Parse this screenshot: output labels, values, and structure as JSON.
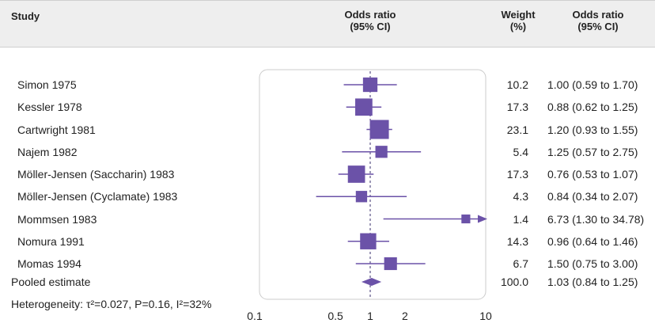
{
  "header": {
    "study": "Study",
    "or_line1": "Odds ratio",
    "or_line2": "(95% CI)",
    "weight_line1": "Weight",
    "weight_line2": "(%)",
    "orci_line1": "Odds ratio",
    "orci_line2": "(95% CI)"
  },
  "colors": {
    "marker": "#6b52a8",
    "header_bg": "#eeeeee",
    "box_border": "#cccccc",
    "text": "#222222"
  },
  "chart_data": {
    "type": "forest",
    "xscale": "log",
    "xlim": [
      0.1,
      10
    ],
    "xticks": [
      0.1,
      0.5,
      1,
      2,
      10
    ],
    "xtick_labels": [
      "0.1",
      "0.5",
      "1",
      "2",
      "10"
    ],
    "reference_line": 1,
    "studies": [
      {
        "name": "Simon 1975",
        "or": 1.0,
        "lo": 0.59,
        "hi": 1.7,
        "weight": "10.2",
        "ci_text": "1.00 (0.59 to 1.70)"
      },
      {
        "name": "Kessler 1978",
        "or": 0.88,
        "lo": 0.62,
        "hi": 1.25,
        "weight": "17.3",
        "ci_text": "0.88 (0.62 to 1.25)"
      },
      {
        "name": "Cartwright 1981",
        "or": 1.2,
        "lo": 0.93,
        "hi": 1.55,
        "weight": "23.1",
        "ci_text": "1.20 (0.93 to 1.55)"
      },
      {
        "name": "Najem 1982",
        "or": 1.25,
        "lo": 0.57,
        "hi": 2.75,
        "weight": "5.4",
        "ci_text": "1.25 (0.57 to 2.75)"
      },
      {
        "name": "Möller-Jensen (Saccharin) 1983",
        "or": 0.76,
        "lo": 0.53,
        "hi": 1.07,
        "weight": "17.3",
        "ci_text": "0.76 (0.53 to 1.07)"
      },
      {
        "name": "Möller-Jensen (Cyclamate) 1983",
        "or": 0.84,
        "lo": 0.34,
        "hi": 2.07,
        "weight": "4.3",
        "ci_text": "0.84 (0.34 to 2.07)"
      },
      {
        "name": "Mommsen 1983",
        "or": 6.73,
        "lo": 1.3,
        "hi": 34.78,
        "weight": "1.4",
        "ci_text": "6.73 (1.30 to 34.78)"
      },
      {
        "name": "Nomura 1991",
        "or": 0.96,
        "lo": 0.64,
        "hi": 1.46,
        "weight": "14.3",
        "ci_text": "0.96 (0.64 to 1.46)"
      },
      {
        "name": "Momas 1994",
        "or": 1.5,
        "lo": 0.75,
        "hi": 3.0,
        "weight": "6.7",
        "ci_text": "1.50 (0.75 to 3.00)"
      }
    ],
    "pooled": {
      "name": "Pooled estimate",
      "or": 1.03,
      "lo": 0.84,
      "hi": 1.25,
      "weight": "100.0",
      "ci_text": "1.03 (0.84 to 1.25)"
    },
    "heterogeneity": "Heterogeneity: τ²=0.027, P=0.16, I²=32%"
  }
}
